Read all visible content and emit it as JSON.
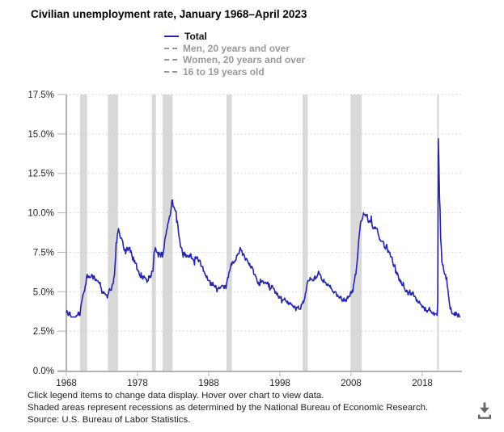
{
  "colors": {
    "background": "#ffffff",
    "line_total": "#2424ac",
    "recession_band": "#d9d9d9",
    "gridline": "#cccccc",
    "y_axis_line": "#666666",
    "x_axis_line": "#b3b3b3",
    "tick_label": "#222222",
    "legend_active": "#111111",
    "legend_inactive": "#999999",
    "footer_text": "#222222",
    "download_icon": "#666666"
  },
  "icons": {
    "download": "download-icon",
    "legend_solid_swatch": "line-swatch-icon",
    "legend_dashed_swatch": "dashed-line-swatch-icon"
  },
  "footer": {
    "lines": [
      "Click legend items to change data display. Hover over chart to view data.",
      "Shaded areas represent recessions as determined by the National Bureau of Economic Research.",
      "Source: U.S. Bureau of Labor Statistics."
    ]
  },
  "chart_data": {
    "type": "line",
    "title": "Civilian unemployment rate, January 1968–April 2023",
    "grid": "horizontal-dotted",
    "legend_position": "top",
    "x_axis": {
      "min": 1968,
      "ticks": [
        1968,
        1978,
        1988,
        1998,
        2008,
        2018
      ]
    },
    "y_axis": {
      "min": 0,
      "max": 17.5,
      "unit": "%",
      "ticks": [
        "0.0%",
        "2.5%",
        "5.0%",
        "7.5%",
        "10.0%",
        "12.5%",
        "15.0%",
        "17.5%"
      ]
    },
    "recessions": [
      {
        "start": "1969-12",
        "end": "1970-11"
      },
      {
        "start": "1973-11",
        "end": "1975-03"
      },
      {
        "start": "1980-01",
        "end": "1980-07"
      },
      {
        "start": "1981-07",
        "end": "1982-11"
      },
      {
        "start": "1990-07",
        "end": "1991-03"
      },
      {
        "start": "2001-03",
        "end": "2001-11"
      },
      {
        "start": "2007-12",
        "end": "2009-06"
      },
      {
        "start": "2020-02",
        "end": "2020-04"
      }
    ],
    "series": [
      {
        "name": "Total",
        "active": true,
        "style": "solid",
        "color": "#2424ac",
        "start": "1968-01",
        "end": "2023-04",
        "frequency": "monthly",
        "values": [
          3.7,
          3.8,
          3.7,
          3.5,
          3.5,
          3.7,
          3.7,
          3.5,
          3.4,
          3.4,
          3.4,
          3.4,
          3.4,
          3.4,
          3.4,
          3.4,
          3.4,
          3.5,
          3.5,
          3.5,
          3.7,
          3.7,
          3.5,
          3.5,
          3.9,
          4.2,
          4.4,
          4.6,
          4.8,
          4.9,
          5.0,
          5.1,
          5.4,
          5.5,
          5.9,
          6.1,
          5.9,
          5.9,
          6.0,
          5.9,
          5.9,
          5.9,
          6.0,
          6.1,
          6.0,
          5.8,
          6.0,
          6.0,
          5.8,
          5.7,
          5.8,
          5.7,
          5.7,
          5.7,
          5.6,
          5.6,
          5.5,
          5.6,
          5.3,
          5.2,
          4.9,
          5.0,
          4.9,
          5.0,
          4.9,
          4.9,
          4.8,
          4.8,
          4.8,
          4.6,
          4.8,
          4.9,
          5.1,
          5.2,
          5.1,
          5.1,
          5.1,
          5.4,
          5.5,
          5.5,
          5.9,
          6.0,
          6.6,
          7.2,
          8.1,
          8.1,
          8.6,
          8.8,
          9.0,
          8.8,
          8.6,
          8.4,
          8.4,
          8.4,
          8.3,
          8.2,
          7.9,
          7.7,
          7.6,
          7.7,
          7.4,
          7.6,
          7.8,
          7.8,
          7.6,
          7.7,
          7.8,
          7.8,
          7.5,
          7.6,
          7.4,
          7.2,
          7.0,
          7.2,
          6.9,
          7.0,
          6.8,
          6.8,
          6.8,
          6.4,
          6.4,
          6.3,
          6.3,
          6.1,
          6.0,
          5.9,
          6.2,
          5.9,
          6.0,
          5.8,
          5.9,
          6.0,
          5.9,
          5.9,
          5.8,
          5.8,
          5.6,
          5.7,
          5.7,
          6.0,
          5.9,
          6.0,
          5.9,
          6.0,
          6.3,
          6.3,
          6.3,
          6.9,
          7.5,
          7.6,
          7.8,
          7.7,
          7.5,
          7.5,
          7.5,
          7.2,
          7.5,
          7.4,
          7.4,
          7.2,
          7.5,
          7.5,
          7.2,
          7.4,
          7.6,
          7.9,
          8.3,
          8.5,
          8.6,
          8.9,
          9.0,
          9.3,
          9.4,
          9.6,
          9.8,
          9.8,
          10.1,
          10.4,
          10.8,
          10.8,
          10.4,
          10.4,
          10.3,
          10.2,
          10.1,
          10.1,
          9.4,
          9.5,
          9.2,
          8.8,
          8.5,
          8.3,
          8.0,
          7.8,
          7.8,
          7.7,
          7.4,
          7.2,
          7.5,
          7.5,
          7.3,
          7.4,
          7.2,
          7.3,
          7.3,
          7.2,
          7.2,
          7.3,
          7.2,
          7.4,
          7.4,
          7.1,
          7.1,
          7.1,
          7.0,
          7.0,
          6.7,
          7.2,
          7.2,
          7.1,
          7.2,
          7.2,
          7.0,
          6.9,
          7.0,
          7.0,
          6.9,
          6.6,
          6.6,
          6.6,
          6.6,
          6.3,
          6.3,
          6.2,
          6.1,
          6.0,
          5.9,
          6.0,
          5.8,
          5.7,
          5.7,
          5.7,
          5.7,
          5.4,
          5.6,
          5.4,
          5.4,
          5.6,
          5.4,
          5.4,
          5.3,
          5.3,
          5.4,
          5.2,
          5.0,
          5.2,
          5.2,
          5.3,
          5.2,
          5.2,
          5.3,
          5.3,
          5.4,
          5.4,
          5.4,
          5.3,
          5.2,
          5.4,
          5.4,
          5.2,
          5.5,
          5.7,
          5.9,
          5.9,
          6.2,
          6.3,
          6.4,
          6.6,
          6.8,
          6.7,
          6.9,
          6.9,
          6.8,
          6.9,
          6.9,
          7.0,
          7.0,
          7.3,
          7.3,
          7.4,
          7.4,
          7.4,
          7.6,
          7.8,
          7.7,
          7.6,
          7.6,
          7.3,
          7.4,
          7.4,
          7.3,
          7.1,
          7.0,
          7.1,
          7.1,
          7.0,
          6.9,
          6.8,
          6.7,
          6.8,
          6.6,
          6.5,
          6.6,
          6.6,
          6.5,
          6.4,
          6.1,
          6.1,
          6.1,
          6.0,
          5.9,
          5.8,
          5.6,
          5.5,
          5.6,
          5.4,
          5.4,
          5.8,
          5.6,
          5.6,
          5.7,
          5.7,
          5.6,
          5.5,
          5.6,
          5.6,
          5.6,
          5.5,
          5.5,
          5.6,
          5.6,
          5.3,
          5.5,
          5.1,
          5.2,
          5.2,
          5.4,
          5.4,
          5.3,
          5.2,
          5.2,
          5.1,
          4.9,
          5.0,
          4.9,
          4.8,
          4.9,
          4.7,
          4.6,
          4.7,
          4.6,
          4.6,
          4.7,
          4.3,
          4.4,
          4.5,
          4.5,
          4.5,
          4.6,
          4.5,
          4.4,
          4.4,
          4.3,
          4.4,
          4.2,
          4.3,
          4.2,
          4.3,
          4.3,
          4.2,
          4.2,
          4.1,
          4.1,
          4.0,
          4.0,
          4.1,
          4.0,
          3.8,
          4.0,
          4.0,
          4.0,
          4.1,
          3.9,
          3.9,
          3.9,
          3.9,
          4.2,
          4.2,
          4.3,
          4.4,
          4.3,
          4.5,
          4.6,
          4.9,
          5.0,
          5.3,
          5.5,
          5.7,
          5.7,
          5.7,
          5.7,
          5.9,
          5.8,
          5.8,
          5.8,
          5.7,
          5.7,
          5.7,
          5.9,
          6.0,
          5.8,
          5.9,
          5.9,
          6.0,
          6.1,
          6.3,
          6.2,
          6.1,
          6.1,
          6.0,
          5.8,
          5.7,
          5.7,
          5.6,
          5.8,
          5.6,
          5.6,
          5.6,
          5.5,
          5.4,
          5.4,
          5.5,
          5.4,
          5.4,
          5.3,
          5.4,
          5.2,
          5.2,
          5.1,
          5.0,
          5.0,
          4.9,
          5.0,
          5.0,
          5.0,
          4.9,
          4.7,
          4.8,
          4.7,
          4.7,
          4.6,
          4.6,
          4.7,
          4.7,
          4.5,
          4.4,
          4.5,
          4.4,
          4.6,
          4.5,
          4.4,
          4.5,
          4.4,
          4.6,
          4.7,
          4.6,
          4.7,
          4.7,
          4.7,
          5.0,
          5.0,
          4.9,
          5.1,
          5.0,
          5.4,
          5.6,
          5.8,
          6.1,
          6.1,
          6.5,
          6.8,
          7.3,
          7.8,
          8.3,
          8.7,
          9.0,
          9.4,
          9.5,
          9.5,
          9.6,
          9.8,
          10.0,
          9.9,
          9.9,
          9.8,
          9.8,
          9.9,
          9.9,
          9.6,
          9.4,
          9.4,
          9.5,
          9.5,
          9.4,
          9.8,
          9.3,
          9.1,
          9.0,
          9.0,
          9.1,
          9.0,
          9.1,
          9.0,
          9.0,
          9.0,
          8.8,
          8.6,
          8.5,
          8.3,
          8.3,
          8.2,
          8.2,
          8.2,
          8.2,
          8.2,
          8.1,
          7.8,
          7.8,
          7.7,
          7.9,
          8.0,
          7.7,
          7.5,
          7.6,
          7.5,
          7.5,
          7.3,
          7.2,
          7.2,
          7.2,
          6.9,
          6.7,
          6.6,
          6.7,
          6.7,
          6.2,
          6.3,
          6.1,
          6.2,
          6.1,
          5.9,
          5.7,
          5.8,
          5.6,
          5.7,
          5.5,
          5.4,
          5.4,
          5.6,
          5.3,
          5.2,
          5.1,
          5.0,
          5.0,
          5.1,
          5.0,
          4.8,
          4.9,
          5.0,
          5.1,
          4.8,
          4.9,
          4.8,
          4.9,
          5.0,
          4.9,
          4.7,
          4.7,
          4.7,
          4.6,
          4.4,
          4.5,
          4.4,
          4.3,
          4.3,
          4.4,
          4.3,
          4.2,
          4.2,
          4.1,
          4.0,
          4.1,
          4.0,
          4.0,
          3.8,
          4.0,
          3.8,
          3.8,
          3.7,
          3.8,
          3.8,
          3.9,
          4.0,
          3.8,
          3.8,
          3.7,
          3.7,
          3.6,
          3.6,
          3.7,
          3.5,
          3.6,
          3.6,
          3.6,
          3.6,
          3.5,
          4.4,
          14.7,
          13.2,
          11.0,
          10.2,
          8.4,
          7.8,
          6.9,
          6.7,
          6.7,
          6.4,
          6.2,
          6.1,
          6.1,
          5.8,
          5.9,
          5.4,
          5.2,
          4.8,
          4.5,
          4.2,
          3.9,
          4.0,
          3.8,
          3.6,
          3.6,
          3.6,
          3.6,
          3.5,
          3.7,
          3.5,
          3.7,
          3.6,
          3.5,
          3.4,
          3.6,
          3.5,
          3.4
        ]
      },
      {
        "name": "Men, 20 years and over",
        "active": false,
        "style": "dashed",
        "color": "#999999"
      },
      {
        "name": "Women, 20 years and over",
        "active": false,
        "style": "dashed",
        "color": "#999999"
      },
      {
        "name": "16 to 19 years old",
        "active": false,
        "style": "dashed",
        "color": "#999999"
      }
    ]
  }
}
